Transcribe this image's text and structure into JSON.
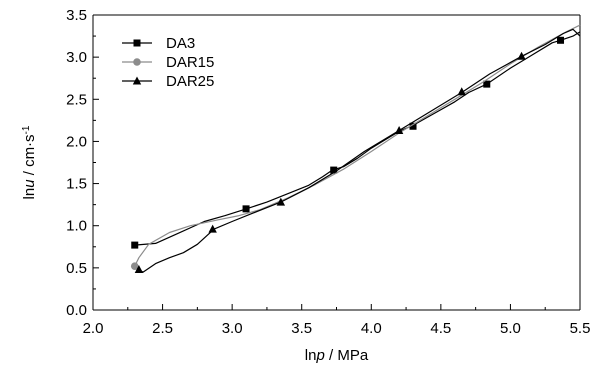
{
  "chart_data": {
    "type": "line",
    "title": "",
    "xlabel": {
      "pre": "ln",
      "var": "p",
      "post": " / MPa"
    },
    "ylabel": {
      "pre": "ln",
      "var": "u",
      "post": " / cm·s",
      "sup": "-1"
    },
    "xlim": [
      2.0,
      5.5
    ],
    "ylim": [
      0.0,
      3.5
    ],
    "xticks": [
      "2.0",
      "2.5",
      "3.0",
      "3.5",
      "4.0",
      "4.5",
      "5.0",
      "5.5"
    ],
    "yticks": [
      "0.0",
      "0.5",
      "1.0",
      "1.5",
      "2.0",
      "2.5",
      "3.0",
      "3.5"
    ],
    "grid": false,
    "legend_position": "top-left",
    "series": [
      {
        "name": "DA3",
        "color": "#000000",
        "marker": "square",
        "x": [
          2.3,
          2.45,
          2.6,
          2.8,
          2.95,
          3.1,
          3.25,
          3.4,
          3.55,
          3.65,
          3.72,
          3.8,
          3.9,
          4.0,
          4.1,
          4.2,
          4.3,
          4.45,
          4.6,
          4.7,
          4.83,
          5.0,
          5.15,
          5.3,
          5.36,
          5.45,
          5.5
        ],
        "y": [
          0.77,
          0.79,
          0.9,
          1.05,
          1.12,
          1.2,
          1.28,
          1.38,
          1.48,
          1.58,
          1.66,
          1.7,
          1.8,
          1.92,
          2.02,
          2.12,
          2.19,
          2.33,
          2.47,
          2.58,
          2.68,
          2.87,
          3.02,
          3.17,
          3.2,
          3.25,
          3.3
        ],
        "marker_x": [
          2.3,
          3.1,
          3.73,
          4.3,
          4.83,
          5.36
        ],
        "marker_y": [
          0.77,
          1.2,
          1.66,
          2.18,
          2.68,
          3.2
        ]
      },
      {
        "name": "DAR15",
        "color": "#8c8c8c",
        "marker": "circle",
        "x": [
          2.3,
          2.33,
          2.4,
          2.55,
          2.7,
          2.9,
          3.05,
          3.2,
          3.4,
          3.6,
          3.8,
          4.0,
          4.2,
          4.4,
          4.6,
          4.8,
          5.0,
          5.2,
          5.4,
          5.5
        ],
        "y": [
          0.52,
          0.62,
          0.78,
          0.92,
          1.0,
          1.07,
          1.12,
          1.19,
          1.33,
          1.49,
          1.67,
          1.88,
          2.1,
          2.3,
          2.5,
          2.7,
          2.92,
          3.12,
          3.3,
          3.38
        ],
        "marker_x": [
          2.3
        ],
        "marker_y": [
          0.52
        ]
      },
      {
        "name": "DAR25",
        "color": "#000000",
        "marker": "triangle",
        "x": [
          2.32,
          2.36,
          2.45,
          2.55,
          2.65,
          2.75,
          2.87,
          3.0,
          3.15,
          3.35,
          3.55,
          3.75,
          3.95,
          4.2,
          4.45,
          4.65,
          4.85,
          5.08,
          5.25,
          5.38,
          5.45,
          5.5
        ],
        "y": [
          0.48,
          0.45,
          0.55,
          0.62,
          0.68,
          0.78,
          0.96,
          1.05,
          1.15,
          1.28,
          1.45,
          1.65,
          1.88,
          2.13,
          2.38,
          2.58,
          2.8,
          3.01,
          3.15,
          3.28,
          3.33,
          3.25
        ],
        "marker_x": [
          2.33,
          2.86,
          3.35,
          4.2,
          4.65,
          5.08
        ],
        "marker_y": [
          0.48,
          0.96,
          1.28,
          2.13,
          2.59,
          3.01
        ]
      }
    ]
  }
}
